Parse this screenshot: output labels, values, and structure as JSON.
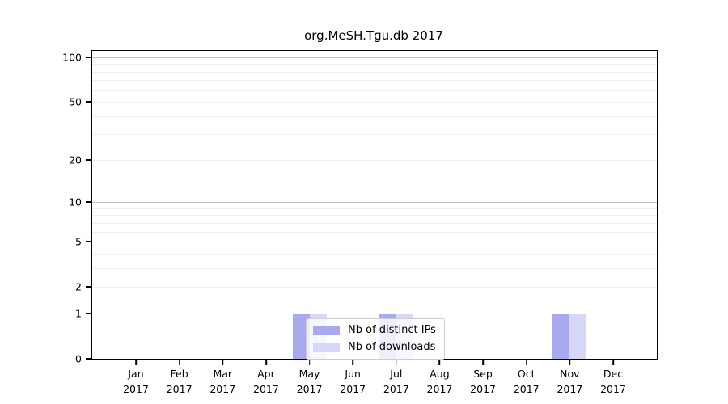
{
  "title": "org.MeSH.Tgu.db 2017",
  "legend": {
    "items": [
      {
        "label": "Nb of distinct IPs",
        "color": "#a9a9f0"
      },
      {
        "label": "Nb of downloads",
        "color": "#d7d7f8"
      }
    ]
  },
  "colors": {
    "bar_distinct_ips": "#a9a9f0",
    "bar_downloads": "#d7d7f8",
    "grid_major": "#c2c2c2",
    "grid_minor": "#eeeeee",
    "axis": "#000000"
  },
  "chart_data": {
    "type": "bar",
    "title": "org.MeSH.Tgu.db 2017",
    "categories": [
      "Jan 2017",
      "Feb 2017",
      "Mar 2017",
      "Apr 2017",
      "May 2017",
      "Jun 2017",
      "Jul 2017",
      "Aug 2017",
      "Sep 2017",
      "Oct 2017",
      "Nov 2017",
      "Dec 2017"
    ],
    "months": [
      "Jan",
      "Feb",
      "Mar",
      "Apr",
      "May",
      "Jun",
      "Jul",
      "Aug",
      "Sep",
      "Oct",
      "Nov",
      "Dec"
    ],
    "year": "2017",
    "series": [
      {
        "name": "Nb of distinct IPs",
        "color": "#a9a9f0",
        "values": [
          0,
          0,
          0,
          0,
          1,
          0,
          1,
          0,
          0,
          0,
          1,
          0
        ]
      },
      {
        "name": "Nb of downloads",
        "color": "#d7d7f8",
        "values": [
          0,
          0,
          0,
          0,
          1,
          0,
          1,
          0,
          0,
          0,
          1,
          0
        ]
      }
    ],
    "yscale": "log1p",
    "ylim": [
      0,
      110
    ],
    "y_ticks": [
      0,
      1,
      2,
      5,
      10,
      20,
      50,
      100
    ],
    "grid": "horizontal",
    "grid_major_values": [
      1,
      10,
      100
    ],
    "grid_minor_values": [
      2,
      3,
      4,
      5,
      6,
      7,
      8,
      9,
      20,
      30,
      40,
      50,
      60,
      70,
      80,
      90
    ],
    "legend_position": "lower center-left"
  }
}
